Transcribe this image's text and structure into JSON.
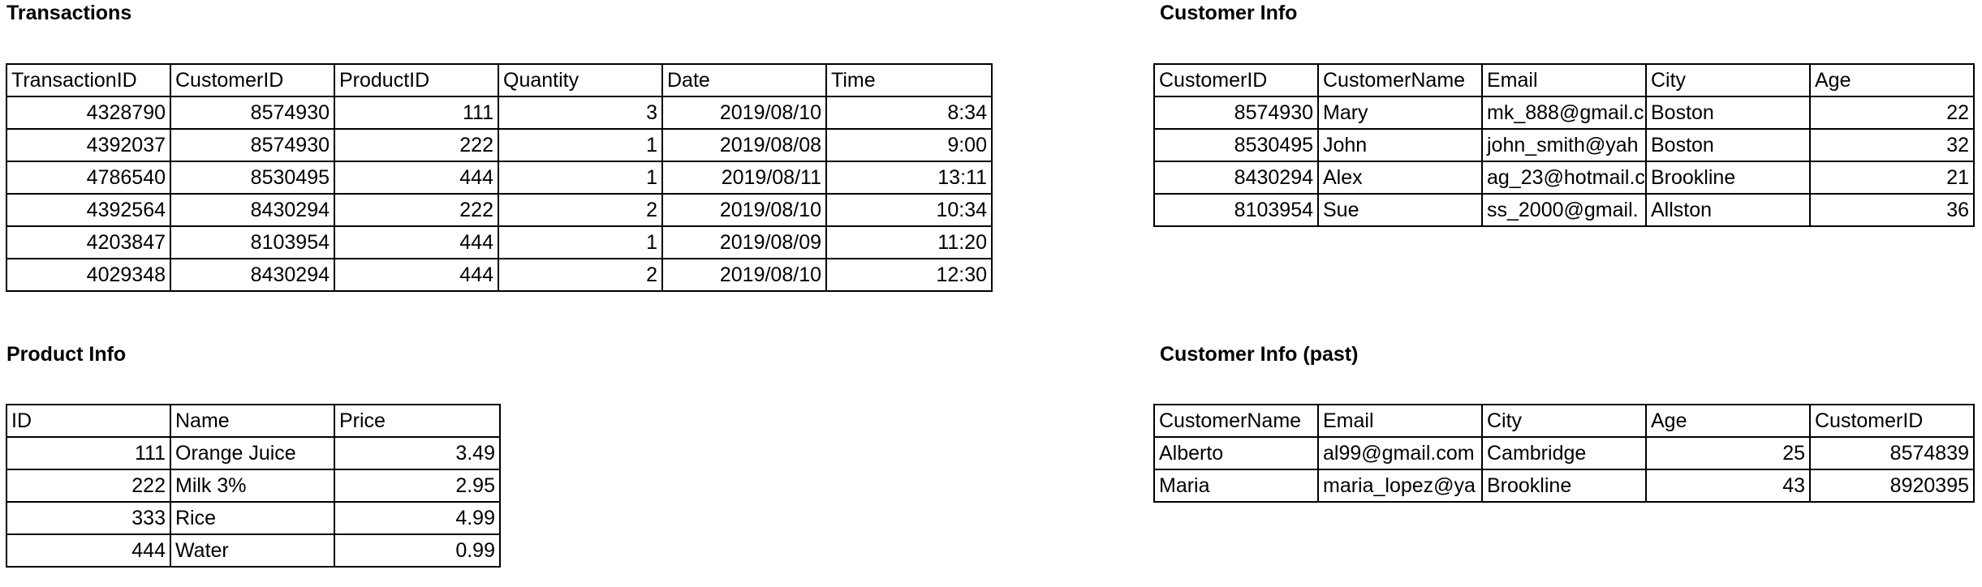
{
  "transactions": {
    "title": "Transactions",
    "headers": [
      "TransactionID",
      "CustomerID",
      "ProductID",
      "Quantity",
      "Date",
      "Time"
    ],
    "rows": [
      [
        "4328790",
        "8574930",
        "111",
        "3",
        "2019/08/10",
        "8:34"
      ],
      [
        "4392037",
        "8574930",
        "222",
        "1",
        "2019/08/08",
        "9:00"
      ],
      [
        "4786540",
        "8530495",
        "444",
        "1",
        "2019/08/11",
        "13:11"
      ],
      [
        "4392564",
        "8430294",
        "222",
        "2",
        "2019/08/10",
        "10:34"
      ],
      [
        "4203847",
        "8103954",
        "444",
        "1",
        "2019/08/09",
        "11:20"
      ],
      [
        "4029348",
        "8430294",
        "444",
        "2",
        "2019/08/10",
        "12:30"
      ]
    ]
  },
  "customer_info": {
    "title": "Customer Info",
    "headers": [
      "CustomerID",
      "CustomerName",
      "Email",
      "City",
      "Age"
    ],
    "rows": [
      [
        "8574930",
        "Mary",
        "mk_888@gmail.c",
        "Boston",
        "22"
      ],
      [
        "8530495",
        "John",
        "john_smith@yah",
        "Boston",
        "32"
      ],
      [
        "8430294",
        "Alex",
        "ag_23@hotmail.c",
        "Brookline",
        "21"
      ],
      [
        "8103954",
        "Sue",
        "ss_2000@gmail.",
        "Allston",
        "36"
      ]
    ]
  },
  "product_info": {
    "title": "Product Info",
    "headers": [
      "ID",
      "Name",
      "Price"
    ],
    "rows": [
      [
        "111",
        "Orange Juice",
        "3.49"
      ],
      [
        "222",
        "Milk 3%",
        "2.95"
      ],
      [
        "333",
        "Rice",
        "4.99"
      ],
      [
        "444",
        "Water",
        "0.99"
      ]
    ]
  },
  "customer_info_past": {
    "title": "Customer Info (past)",
    "headers": [
      "CustomerName",
      "Email",
      "City",
      "Age",
      "CustomerID"
    ],
    "rows": [
      [
        "Alberto",
        "al99@gmail.com",
        "Cambridge",
        "25",
        "8574839"
      ],
      [
        "Maria",
        "maria_lopez@ya",
        "Brookline",
        "43",
        "8920395"
      ]
    ]
  }
}
